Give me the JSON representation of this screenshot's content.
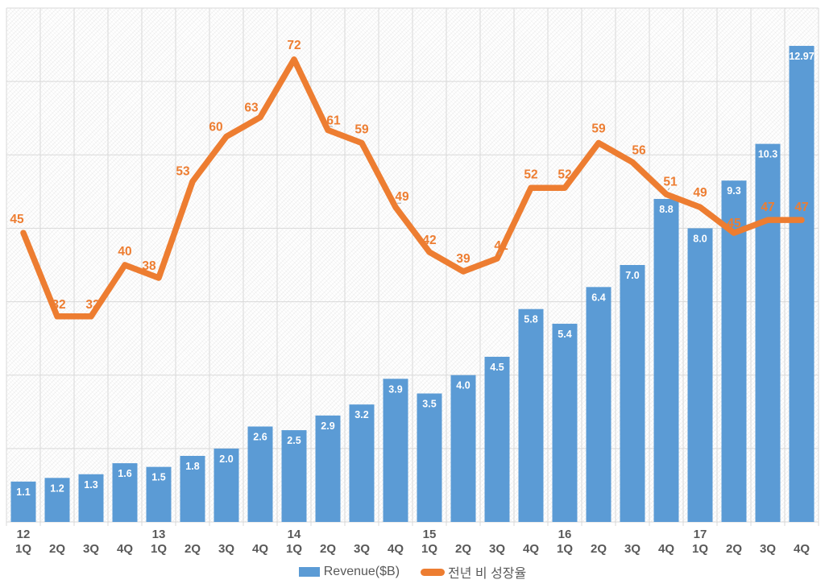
{
  "chart_data": {
    "type": "combo",
    "title": "",
    "categories": [
      {
        "year": "12",
        "quarter": "1Q"
      },
      {
        "year": "",
        "quarter": "2Q"
      },
      {
        "year": "",
        "quarter": "3Q"
      },
      {
        "year": "",
        "quarter": "4Q"
      },
      {
        "year": "13",
        "quarter": "1Q"
      },
      {
        "year": "",
        "quarter": "2Q"
      },
      {
        "year": "",
        "quarter": "3Q"
      },
      {
        "year": "",
        "quarter": "4Q"
      },
      {
        "year": "14",
        "quarter": "1Q"
      },
      {
        "year": "",
        "quarter": "2Q"
      },
      {
        "year": "",
        "quarter": "3Q"
      },
      {
        "year": "",
        "quarter": "4Q"
      },
      {
        "year": "15",
        "quarter": "1Q"
      },
      {
        "year": "",
        "quarter": "2Q"
      },
      {
        "year": "",
        "quarter": "3Q"
      },
      {
        "year": "",
        "quarter": "4Q"
      },
      {
        "year": "16",
        "quarter": "1Q"
      },
      {
        "year": "",
        "quarter": "2Q"
      },
      {
        "year": "",
        "quarter": "3Q"
      },
      {
        "year": "",
        "quarter": "4Q"
      },
      {
        "year": "17",
        "quarter": "1Q"
      },
      {
        "year": "",
        "quarter": "2Q"
      },
      {
        "year": "",
        "quarter": "3Q"
      },
      {
        "year": "",
        "quarter": "4Q"
      }
    ],
    "series": [
      {
        "name": "Revenue($B)",
        "type": "bar",
        "color": "#5B9BD5",
        "label_color": "#FFFFFF",
        "values": [
          1.1,
          1.2,
          1.3,
          1.6,
          1.5,
          1.8,
          2.0,
          2.6,
          2.5,
          2.9,
          3.2,
          3.9,
          3.5,
          4.0,
          4.5,
          5.8,
          5.4,
          6.4,
          7.0,
          8.8,
          8.0,
          9.3,
          10.3,
          12.97
        ],
        "value_labels": [
          "1.1",
          "1.2",
          "1.3",
          "1.6",
          "1.5",
          "1.8",
          "2.0",
          "2.6",
          "2.5",
          "2.9",
          "3.2",
          "3.9",
          "3.5",
          "4.0",
          "4.5",
          "5.8",
          "5.4",
          "6.4",
          "7.0",
          "8.8",
          "8.0",
          "9.3",
          "10.3",
          "12.97"
        ]
      },
      {
        "name": "전년 비 성장율",
        "type": "line",
        "color": "#ED7D31",
        "label_color": "#ED7D31",
        "values": [
          45,
          32,
          32,
          40,
          38,
          53,
          60,
          63,
          72,
          61,
          59,
          49,
          42,
          39,
          41,
          52,
          52,
          59,
          56,
          51,
          49,
          45,
          47,
          47
        ],
        "value_labels": [
          "45",
          "32",
          "32",
          "40",
          "38",
          "53",
          "60",
          "63",
          "72",
          "61",
          "59",
          "49",
          "42",
          "39",
          "41",
          "52",
          "52",
          "59",
          "56",
          "51",
          "49",
          "45",
          "47",
          "47"
        ]
      }
    ],
    "axes": {
      "bar_axis": {
        "min": 0,
        "max": 14,
        "visible": false
      },
      "line_axis": {
        "min": 0,
        "max": 80,
        "visible": false
      },
      "x_ticks_visible": true
    },
    "grid": {
      "horizontal_lines": 8,
      "vertical_every_category": true,
      "color": "#D9D9D9"
    },
    "legend": {
      "position": "bottom-center"
    }
  },
  "styles": {
    "background": "#FFFFFF",
    "axis_text_color": "#595959",
    "plot_hatch": true
  }
}
